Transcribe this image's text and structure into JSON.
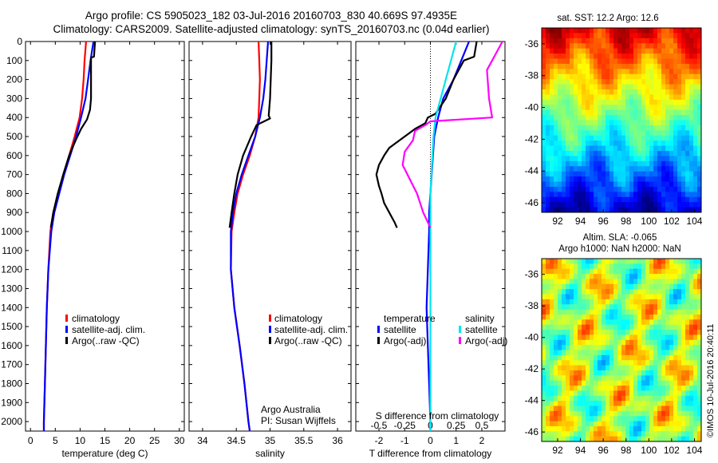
{
  "header": {
    "line1": "Argo profile: CS 5905023_182 03-Jul-2016 20160703_830 40.669S 97.4935E",
    "line2": "Climatology: CARS2009. Satellite-adjusted climatology: synTS_20160703.nc (0.04d earlier)"
  },
  "legend_labels": {
    "climatology": "climatology",
    "satellite_adj": "satellite-adj. clim.",
    "argo_raw": "Argo(..raw -QC)",
    "temperature": "temperature",
    "salinity": "salinity",
    "satellite": "satellite",
    "argo_adj": "Argo(-adj)"
  },
  "annotations": {
    "argo_australia": "Argo Australia",
    "pi": "PI: Susan Wijffels",
    "s_diff_label": "S difference from climatology",
    "sst_title": "sat. SST: 12.2 Argo: 12.6",
    "sla_title1": "Altim. SLA: -0.065",
    "sla_title2": "Argo h1000: NaN h2000: NaN",
    "imos": "©IMOS 10-Jul-2016 20:40:11"
  },
  "colors": {
    "climatology": "#ff0000",
    "satellite": "#0000ff",
    "argo": "#000000",
    "sal_sat": "#00e5ee",
    "sal_argo": "#ff00ff"
  },
  "chart_data": [
    {
      "type": "line",
      "xlabel": "temperature (deg C)",
      "xlim": [
        -1,
        31
      ],
      "ylim": [
        0,
        2050
      ],
      "yticks": [
        0,
        100,
        200,
        300,
        400,
        500,
        600,
        700,
        800,
        900,
        1000,
        1100,
        1200,
        1300,
        1400,
        1500,
        1600,
        1700,
        1800,
        1900,
        2000
      ],
      "xticks": [
        0,
        5,
        10,
        15,
        20,
        25,
        30
      ],
      "series": [
        {
          "name": "climatology",
          "color": "#ff0000",
          "depth": [
            0,
            100,
            200,
            300,
            400,
            500,
            600,
            700,
            800,
            900,
            1000,
            1200,
            1400,
            1600,
            1800,
            2000,
            2050
          ],
          "values": [
            11.2,
            10.9,
            10.7,
            10.4,
            9.9,
            8.9,
            7.8,
            6.6,
            5.6,
            4.6,
            4.0,
            3.6,
            3.3,
            3.1,
            2.9,
            2.7,
            2.7
          ]
        },
        {
          "name": "satellite-adj. clim.",
          "color": "#0000ff",
          "depth": [
            0,
            50,
            100,
            200,
            300,
            400,
            500,
            600,
            700,
            800,
            900,
            1000,
            1200,
            1400,
            1600,
            1800,
            2000,
            2050
          ],
          "values": [
            12.7,
            12.4,
            12.1,
            11.6,
            11.1,
            10.2,
            9.2,
            8.0,
            6.8,
            5.8,
            4.8,
            4.2,
            3.6,
            3.3,
            3.1,
            2.9,
            2.7,
            2.7
          ]
        },
        {
          "name": "Argo(..raw -QC)",
          "color": "#000000",
          "depth": [
            0,
            80,
            85,
            300,
            360,
            410,
            460,
            520,
            600,
            700,
            800,
            900,
            980
          ],
          "values": [
            13.0,
            12.8,
            12.2,
            12.2,
            12.0,
            11.4,
            10.2,
            9.1,
            7.8,
            6.6,
            5.5,
            4.6,
            4.1
          ]
        }
      ]
    },
    {
      "type": "line",
      "xlabel": "salinity",
      "xlim": [
        33.8,
        36.2
      ],
      "ylim": [
        0,
        2050
      ],
      "xticks": [
        34,
        34.5,
        35,
        35.5,
        36
      ],
      "series": [
        {
          "name": "climatology",
          "color": "#ff0000",
          "depth": [
            0,
            100,
            200,
            300,
            400,
            500,
            600,
            700,
            800,
            900,
            1000,
            1200,
            1400,
            1600,
            1800,
            2000,
            2050
          ],
          "values": [
            34.83,
            34.84,
            34.85,
            34.84,
            34.83,
            34.78,
            34.7,
            34.6,
            34.52,
            34.47,
            34.43,
            34.42,
            34.47,
            34.55,
            34.62,
            34.68,
            34.7
          ]
        },
        {
          "name": "satellite-adj. clim.",
          "color": "#0000ff",
          "depth": [
            0,
            100,
            200,
            300,
            400,
            500,
            600,
            700,
            800,
            900,
            1000,
            1200,
            1400,
            1600,
            1800,
            2000,
            2050
          ],
          "values": [
            34.97,
            34.95,
            34.93,
            34.9,
            34.85,
            34.78,
            34.68,
            34.58,
            34.5,
            34.45,
            34.42,
            34.42,
            34.47,
            34.55,
            34.62,
            34.68,
            34.7
          ]
        },
        {
          "name": "Argo(..raw -QC)",
          "color": "#000000",
          "depth": [
            0,
            60,
            100,
            300,
            390,
            405,
            440,
            500,
            600,
            700,
            800,
            900,
            980
          ],
          "values": [
            35.02,
            35.02,
            35.02,
            35.0,
            34.98,
            35.0,
            34.8,
            34.72,
            34.6,
            34.52,
            34.47,
            34.43,
            34.4
          ]
        }
      ]
    },
    {
      "type": "line",
      "xlabel": "T difference from climatology",
      "xlim": [
        -2.9,
        2.9
      ],
      "ylim": [
        0,
        2050
      ],
      "xticks": [
        -2,
        -1,
        0,
        1,
        2
      ],
      "top_ticks": [
        -0.5,
        -0.25,
        0,
        0.25,
        0.5
      ],
      "series": [
        {
          "name": "temperature satellite",
          "color": "#0000ff",
          "depth": [
            0,
            100,
            200,
            300,
            400,
            500,
            600,
            700,
            800,
            900,
            1000,
            1200,
            1400,
            1600,
            1800,
            2000,
            2050
          ],
          "values": [
            1.5,
            1.2,
            0.9,
            0.5,
            0.3,
            0.15,
            0.1,
            0.05,
            0.0,
            -0.05,
            -0.05,
            -0.1,
            -0.15,
            -0.1,
            -0.05,
            0.0,
            0.0
          ]
        },
        {
          "name": "temperature Argo(-adj)",
          "color": "#000000",
          "depth": [
            0,
            80,
            100,
            200,
            300,
            380,
            400,
            430,
            460,
            500,
            560,
            600,
            650,
            700,
            760,
            800,
            850,
            900,
            950,
            980
          ],
          "values": [
            1.8,
            1.7,
            1.3,
            0.9,
            0.6,
            0.2,
            -0.1,
            -0.2,
            -0.6,
            -1.0,
            -1.6,
            -1.8,
            -2.0,
            -2.1,
            -2.0,
            -1.9,
            -1.8,
            -1.6,
            -1.4,
            -1.3
          ]
        },
        {
          "name": "salinity satellite",
          "color": "#00e5ee",
          "depth": [
            0,
            100,
            200,
            300,
            400,
            500,
            600,
            800,
            1000,
            1200,
            1500,
            1800,
            2000,
            2050
          ],
          "values": [
            0.25,
            0.2,
            0.15,
            0.1,
            0.05,
            0.03,
            0.02,
            0.0,
            0.0,
            0.0,
            0.0,
            0.0,
            0.0,
            0.0
          ]
        },
        {
          "name": "salinity Argo(-adj)",
          "color": "#ff00ff",
          "depth": [
            0,
            80,
            100,
            150,
            300,
            400,
            420,
            440,
            470,
            520,
            580,
            650,
            800,
            900,
            980
          ],
          "values": [
            0.7,
            0.62,
            0.6,
            0.55,
            0.57,
            0.6,
            0.0,
            -0.05,
            -0.15,
            -0.17,
            -0.25,
            -0.27,
            -0.13,
            -0.07,
            0.0
          ]
        }
      ]
    }
  ],
  "maps": [
    {
      "name": "sst",
      "xticks": [
        92,
        94,
        96,
        98,
        100,
        102,
        104
      ],
      "yticks": [
        -36,
        -38,
        -40,
        -42,
        -44,
        -46
      ],
      "xlim": [
        90.6,
        104.6
      ],
      "ylim": [
        -46.6,
        -35.0
      ]
    },
    {
      "name": "sla",
      "xticks": [
        92,
        94,
        96,
        98,
        100,
        102,
        104
      ],
      "yticks": [
        -36,
        -38,
        -40,
        -42,
        -44,
        -46
      ],
      "xlim": [
        90.6,
        104.6
      ],
      "ylim": [
        -46.6,
        -35.0
      ]
    }
  ]
}
